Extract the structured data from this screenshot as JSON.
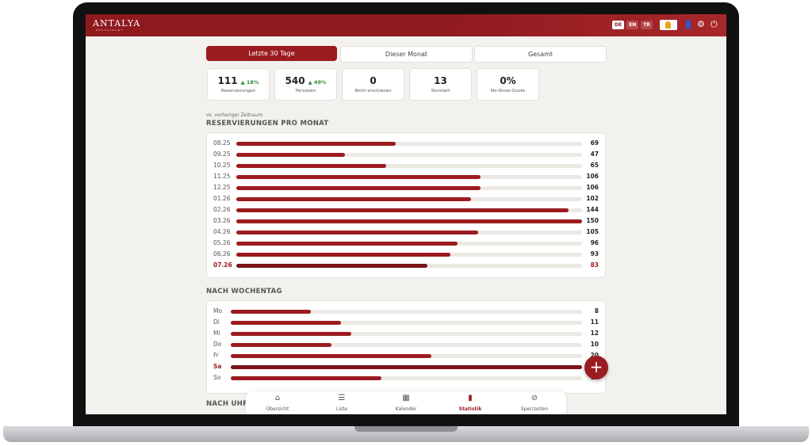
{
  "header": {
    "brand": "ANTALYA",
    "brand_sub": "RESTAURANT",
    "languages": [
      "DE",
      "EN",
      "TR"
    ]
  },
  "tabs": [
    "Letzte 30 Tage",
    "Dieser Monat",
    "Gesamt"
  ],
  "kpis": [
    {
      "value": "111",
      "change": "▲ 18%",
      "label": "Reservierungen"
    },
    {
      "value": "540",
      "change": "▲ 49%",
      "label": "Personen"
    },
    {
      "value": "0",
      "label": "Nicht erschienen"
    },
    {
      "value": "13",
      "label": "Storniert"
    },
    {
      "value": "0%",
      "label": "No-Show-Quote"
    }
  ],
  "kpi_note": "vs. vorheriger Zeitraum",
  "monthly": {
    "title": "RESERVIERUNGEN PRO MONAT",
    "categories": [
      "08.25",
      "09.25",
      "10.25",
      "11.25",
      "12.25",
      "01.26",
      "02.26",
      "03.26",
      "04.26",
      "05.26",
      "06.26",
      "07.26"
    ],
    "values": [
      69,
      47,
      65,
      106,
      106,
      102,
      144,
      150,
      105,
      96,
      93,
      83
    ]
  },
  "weekday": {
    "title": "NACH WOCHENTAG",
    "categories": [
      "Mo",
      "Di",
      "Mi",
      "Do",
      "Fr",
      "Sa",
      "So"
    ],
    "values": [
      8,
      11,
      12,
      10,
      20,
      35,
      15
    ]
  },
  "next_section": "NACH UHRZEIT",
  "nav": [
    "Übersicht",
    "Liste",
    "Kalender",
    "Statistik",
    "Sperrzeiten"
  ]
}
